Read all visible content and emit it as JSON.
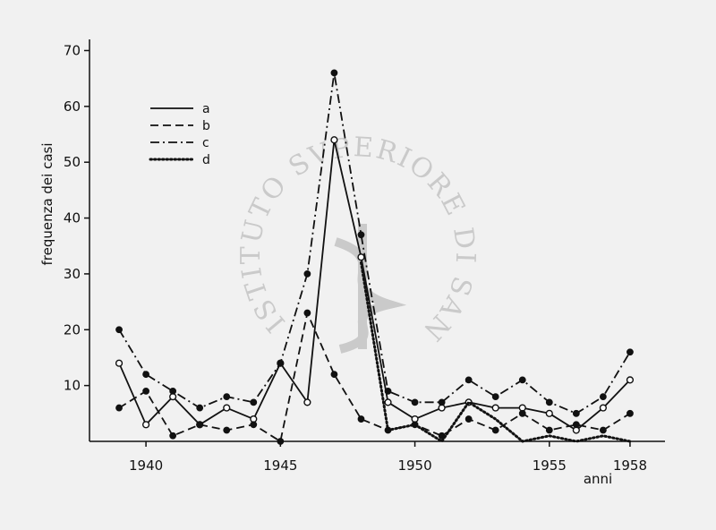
{
  "chart_data": {
    "type": "line",
    "xlabel": "anni",
    "ylabel": "frequenza dei casi",
    "x_ticks": [
      1940,
      1945,
      1950,
      1955,
      1958
    ],
    "y_ticks": [
      10,
      20,
      30,
      40,
      50,
      60,
      70
    ],
    "xlim": [
      1937.9,
      1959.3
    ],
    "ylim": [
      0,
      72
    ],
    "grid": false,
    "legend_position": "top-left",
    "series": [
      {
        "name": "a",
        "line_style": "solid",
        "marker": "open-circle",
        "x": [
          1939,
          1940,
          1941,
          1942,
          1943,
          1944,
          1945,
          1946,
          1947,
          1948,
          1949,
          1950,
          1951,
          1952,
          1953,
          1954,
          1955,
          1956,
          1957,
          1958
        ],
        "y": [
          14,
          3,
          8,
          3,
          6,
          4,
          14,
          7,
          54,
          33,
          7,
          4,
          6,
          7,
          6,
          6,
          5,
          2,
          6,
          11
        ]
      },
      {
        "name": "b",
        "line_style": "dashed",
        "marker": "filled-dot",
        "x": [
          1939,
          1940,
          1941,
          1942,
          1943,
          1944,
          1945,
          1946,
          1947,
          1948,
          1949,
          1950,
          1951,
          1952,
          1953,
          1954,
          1955,
          1956,
          1957,
          1958
        ],
        "y": [
          6,
          9,
          1,
          3,
          2,
          3,
          0,
          23,
          12,
          4,
          2,
          3,
          1,
          4,
          2,
          5,
          2,
          3,
          2,
          5
        ]
      },
      {
        "name": "c",
        "line_style": "dash-dot",
        "marker": "filled-dot",
        "x": [
          1939,
          1940,
          1941,
          1942,
          1943,
          1944,
          1945,
          1946,
          1947,
          1948,
          1949,
          1950,
          1951,
          1952,
          1953,
          1954,
          1955,
          1956,
          1957,
          1958
        ],
        "y": [
          20,
          12,
          9,
          6,
          8,
          7,
          14,
          30,
          66,
          37,
          9,
          7,
          7,
          11,
          8,
          11,
          7,
          5,
          8,
          16
        ]
      },
      {
        "name": "d",
        "line_style": "dotted",
        "marker": "none",
        "x": [
          1948,
          1949,
          1950,
          1951,
          1952,
          1953,
          1954,
          1955,
          1956,
          1957,
          1958
        ],
        "y": [
          32,
          2,
          3,
          0,
          7,
          4,
          0,
          1,
          0,
          1,
          0
        ]
      }
    ]
  },
  "watermark": {
    "text": "ISTITUTO SVPERIORE DI SANITÀ",
    "color": "#bdbdbd"
  }
}
